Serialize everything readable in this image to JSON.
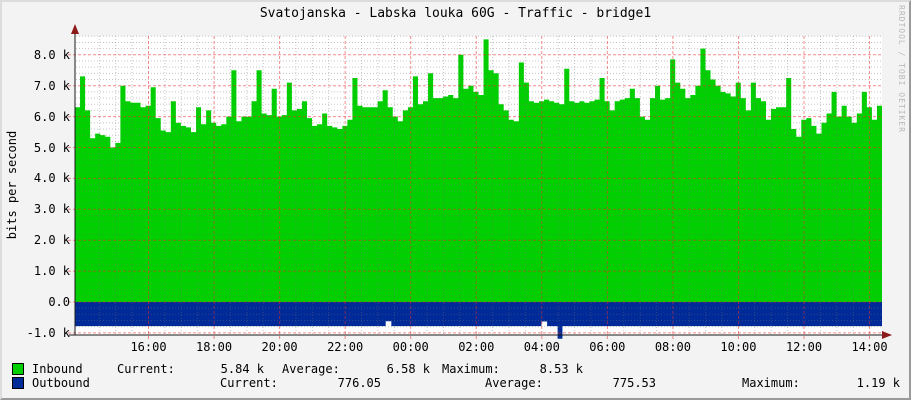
{
  "title": "Svatojanska - Labska louka 60G - Traffic - bridge1",
  "watermark": "RRDTOOL / TOBI OETIKER",
  "y_axis_label": "bits per second",
  "legend": {
    "stat_labels": {
      "current": "Current:",
      "average": "Average:",
      "maximum": "Maximum:"
    },
    "rows": [
      {
        "label": "Inbound",
        "color": "#00cf00",
        "current": "5.84 k",
        "average": "6.58 k",
        "maximum": "8.53 k"
      },
      {
        "label": "Outbound",
        "color": "#002a97",
        "current": "776.05",
        "average": "775.53",
        "maximum": "1.19 k"
      }
    ]
  },
  "chart_data": {
    "type": "area",
    "title": "Svatojanska - Labska louka 60G - Traffic - bridge1",
    "xlabel": "",
    "ylabel": "bits per second",
    "ylim_kbps": [
      -1.0,
      8.6
    ],
    "grid": true,
    "legend_position": "bottom",
    "x_ticks": [
      "16:00",
      "18:00",
      "20:00",
      "22:00",
      "00:00",
      "02:00",
      "04:00",
      "06:00",
      "08:00",
      "10:00",
      "12:00",
      "14:00"
    ],
    "y_ticks": [
      {
        "value_kbps": 8,
        "label": "8.0 k"
      },
      {
        "value_kbps": 7,
        "label": "7.0 k"
      },
      {
        "value_kbps": 6,
        "label": "6.0 k"
      },
      {
        "value_kbps": 5,
        "label": "5.0 k"
      },
      {
        "value_kbps": 4,
        "label": "4.0 k"
      },
      {
        "value_kbps": 3,
        "label": "3.0 k"
      },
      {
        "value_kbps": 2,
        "label": "2.0 k"
      },
      {
        "value_kbps": 1,
        "label": "1.0 k"
      },
      {
        "value_kbps": 0,
        "label": "0.0"
      },
      {
        "value_kbps": -1,
        "label": "-1.0 k"
      }
    ],
    "series": [
      {
        "name": "Inbound",
        "color": "#00cf00",
        "render": "area-positive",
        "unit": "kbit/s",
        "stats": {
          "current": "5.84 k",
          "average": "6.58 k",
          "maximum": "8.53 k"
        },
        "values_kbps": [
          6.3,
          7.3,
          6.2,
          5.3,
          5.45,
          5.4,
          5.35,
          5.0,
          5.15,
          7.0,
          6.5,
          6.45,
          6.45,
          6.3,
          6.35,
          6.95,
          5.95,
          5.55,
          5.5,
          6.5,
          5.8,
          5.7,
          5.65,
          5.5,
          6.3,
          5.75,
          6.2,
          5.8,
          5.7,
          5.75,
          6.0,
          7.5,
          5.85,
          6.0,
          6.0,
          6.5,
          7.5,
          6.1,
          6.05,
          6.9,
          6.0,
          6.05,
          7.1,
          6.2,
          6.25,
          6.5,
          5.95,
          5.7,
          5.75,
          6.1,
          5.7,
          5.65,
          5.6,
          5.7,
          5.9,
          7.25,
          6.35,
          6.3,
          6.3,
          6.3,
          6.5,
          6.85,
          6.3,
          6.0,
          5.85,
          6.2,
          6.3,
          7.3,
          6.4,
          6.5,
          7.4,
          6.6,
          6.6,
          6.65,
          6.7,
          6.6,
          8.0,
          6.9,
          7.0,
          6.8,
          6.7,
          8.5,
          7.5,
          7.4,
          6.4,
          6.2,
          5.9,
          5.85,
          7.75,
          7.1,
          6.5,
          6.45,
          6.5,
          6.55,
          6.5,
          6.45,
          6.4,
          7.55,
          6.5,
          6.45,
          6.5,
          6.45,
          6.5,
          6.55,
          7.25,
          6.5,
          6.2,
          6.5,
          6.55,
          6.6,
          6.9,
          6.6,
          6.0,
          5.9,
          6.6,
          7.0,
          6.55,
          6.6,
          7.85,
          7.1,
          6.9,
          6.6,
          6.7,
          7.0,
          8.2,
          7.5,
          7.2,
          7.0,
          6.8,
          6.75,
          6.65,
          7.1,
          6.6,
          6.2,
          7.1,
          6.6,
          6.5,
          5.9,
          6.25,
          6.3,
          6.3,
          7.25,
          5.6,
          5.35,
          5.9,
          5.95,
          5.7,
          5.45,
          5.8,
          6.1,
          6.8,
          6.0,
          6.35,
          6.0,
          5.8,
          6.1,
          6.8,
          6.3,
          5.9,
          6.35
        ]
      },
      {
        "name": "Outbound",
        "color": "#002a97",
        "render": "area-negative",
        "unit": "bit/s",
        "stats": {
          "current": "776.05",
          "average": "775.53",
          "maximum": "1.19 k"
        },
        "points_frac_kbps": [
          [
            0,
            0.78
          ],
          [
            0.385,
            0.78
          ],
          [
            0.385,
            0.62
          ],
          [
            0.392,
            0.62
          ],
          [
            0.392,
            0.78
          ],
          [
            0.578,
            0.78
          ],
          [
            0.578,
            0.63
          ],
          [
            0.585,
            0.63
          ],
          [
            0.585,
            0.78
          ],
          [
            0.598,
            0.78
          ],
          [
            0.598,
            1.19
          ],
          [
            0.604,
            1.19
          ],
          [
            0.604,
            0.78
          ],
          [
            1,
            0.78
          ]
        ]
      }
    ]
  }
}
